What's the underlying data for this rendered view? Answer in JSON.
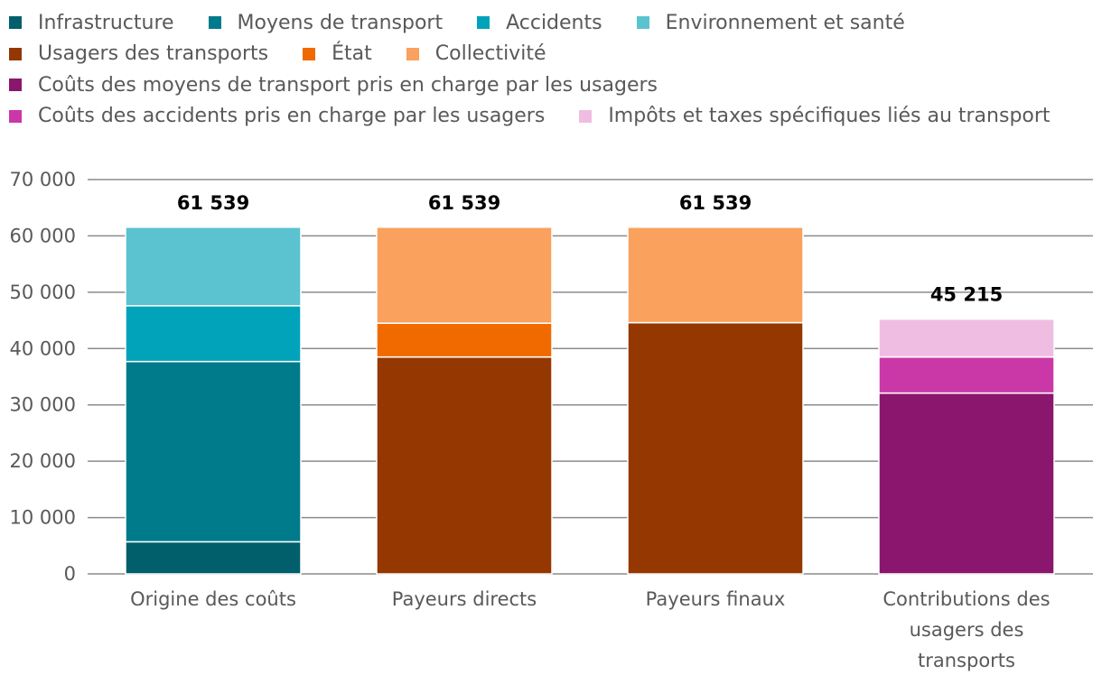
{
  "chart_data": {
    "type": "bar",
    "stacked": true,
    "title": "",
    "xlabel": "",
    "ylabel": "",
    "ylim": [
      0,
      70000
    ],
    "yticks": [
      0,
      10000,
      20000,
      30000,
      40000,
      50000,
      60000,
      70000
    ],
    "ytick_labels": [
      "0",
      "10 000",
      "20 000",
      "30 000",
      "40 000",
      "50 000",
      "60 000",
      "70 000"
    ],
    "grid": true,
    "legend_position": "top",
    "categories": [
      [
        "Origine des coûts"
      ],
      [
        "Payeurs directs"
      ],
      [
        "Payeurs finaux"
      ],
      [
        "Contributions des",
        "usagers des",
        "transports"
      ]
    ],
    "totals": [
      61539,
      61539,
      61539,
      45215
    ],
    "total_labels": [
      "61 539",
      "61 539",
      "61 539",
      "45 215"
    ],
    "series": [
      {
        "name": "Infrastructure",
        "color": "#005F6A",
        "values": [
          5700,
          0,
          0,
          0
        ]
      },
      {
        "name": "Moyens de transport",
        "color": "#007B8C",
        "values": [
          32000,
          0,
          0,
          0
        ]
      },
      {
        "name": "Accidents",
        "color": "#00A3BA",
        "values": [
          9900,
          0,
          0,
          0
        ]
      },
      {
        "name": "Environnement et santé",
        "color": "#5BC2D0",
        "values": [
          13939,
          0,
          0,
          0
        ]
      },
      {
        "name": "Usagers des transports",
        "color": "#953700",
        "values": [
          0,
          38500,
          44600,
          0
        ]
      },
      {
        "name": "État",
        "color": "#F06A00",
        "values": [
          0,
          6000,
          0,
          0
        ]
      },
      {
        "name": "Collectivité",
        "color": "#F9A15D",
        "values": [
          0,
          17039,
          16939,
          0
        ]
      },
      {
        "name": "Coûts des moyens de transport pris en charge par les usagers",
        "color": "#8A166E",
        "values": [
          0,
          0,
          0,
          32100
        ]
      },
      {
        "name": "Coûts des accidents pris en charge par les usagers",
        "color": "#CA38A8",
        "values": [
          0,
          0,
          0,
          6400
        ]
      },
      {
        "name": "Impôts et taxes spécifiques liés au transport",
        "color": "#F0BDE2",
        "values": [
          0,
          0,
          0,
          6715
        ]
      }
    ],
    "legend_rows": [
      [
        0,
        1,
        2,
        3
      ],
      [
        4,
        5,
        6
      ],
      [
        7
      ],
      [
        8,
        9
      ]
    ]
  }
}
